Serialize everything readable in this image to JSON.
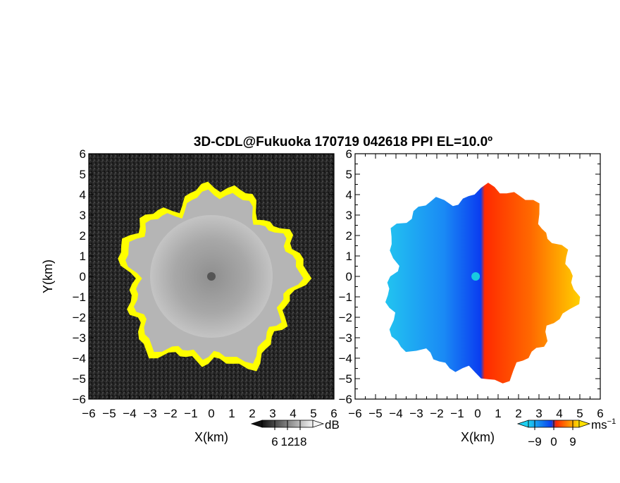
{
  "title": "3D-CDL@Fukuoka 170719 042618 PPI EL=10.0º",
  "colors": {
    "background_dark": "#222222",
    "echo_gray": "#9a9a9a",
    "echo_edge": "#ffff00",
    "velocity_neg": "#0a4fff",
    "velocity_pos": "#ff4a00",
    "radar_site": "#555555",
    "radar_site_vel": "#18c9e0"
  },
  "chart_data": [
    {
      "panel": "reflectivity",
      "type": "heatmap",
      "xlabel": "X(km)",
      "ylabel": "Y(km)",
      "xlim": [
        -6,
        6
      ],
      "ylim": [
        -6,
        6
      ],
      "x_ticks": [
        "−6",
        "−5",
        "−4",
        "−3",
        "−2",
        "−1",
        "0",
        "1",
        "2",
        "3",
        "4",
        "5",
        "6"
      ],
      "y_ticks": [
        "6",
        "5",
        "4",
        "3",
        "2",
        "1",
        "0",
        "−1",
        "−2",
        "−3",
        "−4",
        "−5",
        "−6"
      ],
      "colorbar": {
        "unit": "dB",
        "ticks": [
          "6",
          "12",
          "18"
        ],
        "range": [
          0,
          24
        ],
        "tick_values": [
          6,
          12,
          18
        ]
      },
      "echo_radius_km": 4.3,
      "inner_disk_radius_km": 3.0,
      "site": {
        "x": 0,
        "y": 0
      }
    },
    {
      "panel": "doppler_velocity",
      "type": "heatmap",
      "xlabel": "X(km)",
      "xlim": [
        -6,
        6
      ],
      "ylim": [
        -6,
        6
      ],
      "x_ticks": [
        "−6",
        "−5",
        "−4",
        "−3",
        "−2",
        "−1",
        "0",
        "1",
        "2",
        "3",
        "4",
        "5",
        "6"
      ],
      "y_ticks": [
        "6",
        "5",
        "4",
        "3",
        "2",
        "1",
        "0",
        "−1",
        "−2",
        "−3",
        "−4",
        "−5",
        "−6"
      ],
      "colorbar": {
        "unit": "ms",
        "unit_superscript": "−1",
        "ticks": [
          "−9",
          "0",
          "9"
        ],
        "range": [
          -12,
          12
        ],
        "tick_values": [
          -9,
          0,
          9
        ]
      },
      "echo_radius_km": 4.5,
      "site": {
        "x": -0.1,
        "y": 0
      }
    }
  ]
}
